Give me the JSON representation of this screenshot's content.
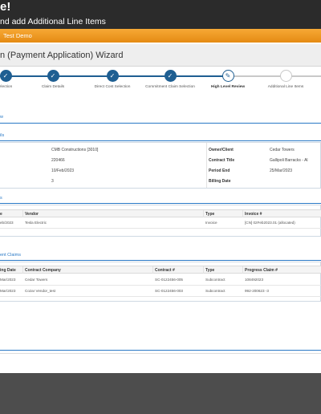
{
  "header": {
    "title": "e!",
    "subtitle": "nd add Additional Line Items"
  },
  "org_bar": {
    "label": "Test Demo"
  },
  "wizard": {
    "title": "n (Payment Application) Wizard",
    "steps": [
      {
        "label": "election",
        "state": "done"
      },
      {
        "label": "Claim Details",
        "state": "done"
      },
      {
        "label": "Direct Cost Selection",
        "state": "done"
      },
      {
        "label": "Commitment Claim Selection",
        "state": "done"
      },
      {
        "label": "High Level Review",
        "state": "current"
      },
      {
        "label": "Additional Line Items",
        "state": "todo"
      }
    ],
    "current_icon": "pencil-icon",
    "done_icon": "check-icon"
  },
  "review": {
    "title": "w"
  },
  "details": {
    "title": "ils",
    "left": [
      {
        "value": "CMB Constructions [3010]"
      },
      {
        "value": "220466"
      },
      {
        "value": "10/Feb/2023"
      },
      {
        "value": "3"
      }
    ],
    "right": [
      {
        "label": "Owner/Client",
        "value": "Cedar Towers"
      },
      {
        "label": "Contract Title",
        "value": "Gallipoli Barracks - Al"
      },
      {
        "label": "Period End",
        "value": "25/Mar/2023"
      },
      {
        "label": "Billing Date",
        "value": ""
      }
    ]
  },
  "direct_costs": {
    "title": "s",
    "columns": [
      "e",
      "Vendor",
      "Type",
      "Invoice #"
    ],
    "rows": [
      [
        "eb/2023",
        "Tesla Electric",
        "Invoice",
        "[CN] 02Feb2023.01 (allocated)"
      ]
    ]
  },
  "commitment_claims": {
    "title": "ent Claims",
    "columns": [
      "ing Date",
      "Contract Company",
      "Contract #",
      "Type",
      "Progress Claim #"
    ],
    "rows": [
      [
        "Mar/2023",
        "Cedar Towers",
        "SC-0122456-005",
        "Subcontract",
        "108492023"
      ],
      [
        "Mar/2023",
        "Cozar Vendor_test",
        "SC-0122456-003",
        "Subcontract",
        "992-200623 -3"
      ]
    ]
  },
  "colors": {
    "accent_blue": "#2a79c6",
    "step_blue": "#1f5f92",
    "orange": "#f39c1f",
    "dark": "#2b2b2b"
  }
}
